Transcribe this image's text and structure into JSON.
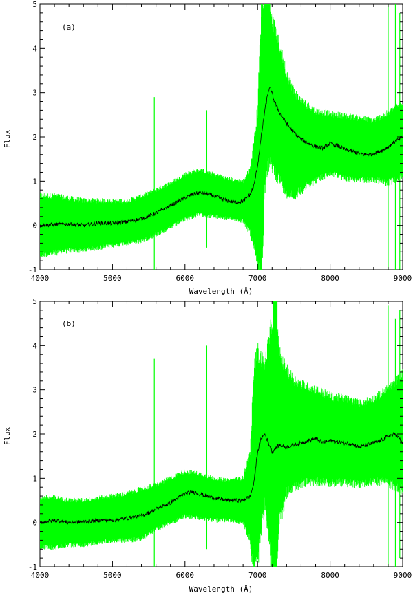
{
  "chart_data": [
    {
      "type": "line",
      "panel_label": "(a)",
      "xlabel": "Wavelength (Å)",
      "ylabel": "Flux",
      "xlim": [
        4000,
        9000
      ],
      "ylim": [
        -1,
        5
      ],
      "xticks": [
        "4000",
        "5000",
        "6000",
        "7000",
        "8000",
        "9000"
      ],
      "yticks": [
        "-1",
        "0",
        "1",
        "2",
        "3",
        "4",
        "5"
      ],
      "grid": false,
      "series": [
        {
          "role": "mean",
          "color": "#000000",
          "x": [
            4000,
            4200,
            4400,
            4600,
            4800,
            5000,
            5200,
            5400,
            5600,
            5800,
            6000,
            6100,
            6200,
            6300,
            6400,
            6500,
            6600,
            6700,
            6800,
            6900,
            6950,
            7000,
            7050,
            7100,
            7150,
            7180,
            7220,
            7300,
            7400,
            7500,
            7600,
            7700,
            7800,
            7900,
            8000,
            8100,
            8200,
            8300,
            8400,
            8500,
            8600,
            8700,
            8800,
            8900,
            9000
          ],
          "y": [
            0.0,
            0.02,
            0.03,
            0.0,
            0.05,
            0.05,
            0.08,
            0.15,
            0.28,
            0.45,
            0.62,
            0.7,
            0.74,
            0.72,
            0.66,
            0.6,
            0.55,
            0.52,
            0.55,
            0.7,
            0.9,
            1.35,
            2.0,
            2.6,
            3.05,
            3.1,
            2.85,
            2.55,
            2.3,
            2.1,
            1.95,
            1.85,
            1.78,
            1.75,
            1.85,
            1.8,
            1.72,
            1.68,
            1.62,
            1.6,
            1.62,
            1.68,
            1.78,
            1.9,
            2.0
          ]
        },
        {
          "role": "spread",
          "color": "#00ff00",
          "x": [
            4000,
            4200,
            4400,
            4600,
            4800,
            5000,
            5200,
            5400,
            5600,
            5800,
            6000,
            6200,
            6400,
            6600,
            6800,
            6900,
            7000,
            7050,
            7100,
            7150,
            7200,
            7300,
            7400,
            7500,
            7600,
            7800,
            8000,
            8200,
            8400,
            8600,
            8800,
            9000
          ],
          "lower": [
            -0.6,
            -0.55,
            -0.5,
            -0.5,
            -0.45,
            -0.4,
            -0.35,
            -0.3,
            -0.15,
            0.0,
            0.2,
            0.3,
            0.25,
            0.2,
            0.15,
            -0.1,
            -0.6,
            -1.0,
            1.0,
            1.6,
            1.5,
            1.2,
            0.9,
            0.8,
            0.9,
            1.1,
            1.25,
            1.15,
            1.1,
            1.1,
            1.05,
            1.2
          ],
          "upper": [
            0.6,
            0.6,
            0.55,
            0.5,
            0.5,
            0.5,
            0.5,
            0.6,
            0.75,
            0.9,
            1.1,
            1.2,
            1.1,
            1.0,
            0.95,
            1.2,
            2.4,
            4.5,
            5.0,
            5.0,
            4.5,
            3.9,
            3.3,
            2.9,
            2.7,
            2.5,
            2.45,
            2.4,
            2.35,
            2.3,
            2.45,
            2.7
          ]
        }
      ],
      "spikes": [
        {
          "x": 5577,
          "lower": -1.0,
          "upper": 2.9
        },
        {
          "x": 6300,
          "lower": -0.5,
          "upper": 2.6
        },
        {
          "x": 8800,
          "lower": -1.0,
          "upper": 5.0
        },
        {
          "x": 8900,
          "lower": -1.0,
          "upper": 5.0
        },
        {
          "x": 8960,
          "lower": -1.0,
          "upper": 4.8
        }
      ]
    },
    {
      "type": "line",
      "panel_label": "(b)",
      "xlabel": "Wavelength (Å)",
      "ylabel": "Flux",
      "xlim": [
        4000,
        9000
      ],
      "ylim": [
        -1,
        5
      ],
      "xticks": [
        "4000",
        "5000",
        "6000",
        "7000",
        "8000",
        "9000"
      ],
      "yticks": [
        "-1",
        "0",
        "1",
        "2",
        "3",
        "4",
        "5"
      ],
      "grid": false,
      "series": [
        {
          "role": "mean",
          "color": "#000000",
          "x": [
            4000,
            4200,
            4400,
            4600,
            4800,
            5000,
            5200,
            5400,
            5600,
            5800,
            6000,
            6100,
            6200,
            6400,
            6600,
            6800,
            6900,
            6950,
            7000,
            7050,
            7100,
            7200,
            7300,
            7400,
            7500,
            7600,
            7700,
            7800,
            7900,
            8000,
            8100,
            8200,
            8300,
            8400,
            8500,
            8600,
            8700,
            8800,
            8900,
            9000
          ],
          "y": [
            0.0,
            0.05,
            0.0,
            0.02,
            0.05,
            0.05,
            0.1,
            0.15,
            0.3,
            0.45,
            0.65,
            0.7,
            0.65,
            0.55,
            0.5,
            0.5,
            0.6,
            0.9,
            1.6,
            1.9,
            2.0,
            1.6,
            1.75,
            1.7,
            1.75,
            1.8,
            1.85,
            1.9,
            1.8,
            1.85,
            1.82,
            1.8,
            1.78,
            1.7,
            1.75,
            1.8,
            1.85,
            1.95,
            2.0,
            1.8
          ]
        },
        {
          "role": "spread",
          "color": "#00ff00",
          "x": [
            4000,
            4200,
            4400,
            4600,
            4800,
            5000,
            5200,
            5400,
            5600,
            5800,
            6000,
            6200,
            6400,
            6600,
            6800,
            6900,
            6950,
            7000,
            7100,
            7200,
            7250,
            7300,
            7400,
            7500,
            7600,
            7800,
            8000,
            8200,
            8400,
            8600,
            8800,
            9000
          ],
          "lower": [
            -0.5,
            -0.5,
            -0.45,
            -0.45,
            -0.4,
            -0.35,
            -0.35,
            -0.3,
            -0.1,
            0.05,
            0.2,
            0.15,
            0.1,
            0.1,
            0.05,
            -0.3,
            -1.0,
            -0.6,
            0.6,
            -0.8,
            -1.0,
            0.2,
            0.8,
            0.9,
            1.0,
            1.05,
            1.0,
            1.0,
            0.95,
            1.05,
            1.0,
            0.9
          ],
          "upper": [
            0.5,
            0.5,
            0.45,
            0.45,
            0.5,
            0.55,
            0.6,
            0.7,
            0.8,
            0.95,
            1.1,
            1.05,
            0.95,
            0.9,
            0.95,
            1.5,
            3.2,
            3.6,
            3.4,
            4.2,
            5.0,
            3.6,
            3.3,
            3.1,
            3.0,
            2.9,
            2.75,
            2.7,
            2.6,
            2.7,
            2.9,
            3.2
          ]
        }
      ],
      "spikes": [
        {
          "x": 5577,
          "lower": -1.0,
          "upper": 3.7
        },
        {
          "x": 6300,
          "lower": -0.6,
          "upper": 4.0
        },
        {
          "x": 8800,
          "lower": -1.0,
          "upper": 4.9
        },
        {
          "x": 8900,
          "lower": -1.0,
          "upper": 4.6
        },
        {
          "x": 8960,
          "lower": -0.8,
          "upper": 4.8
        }
      ]
    }
  ]
}
